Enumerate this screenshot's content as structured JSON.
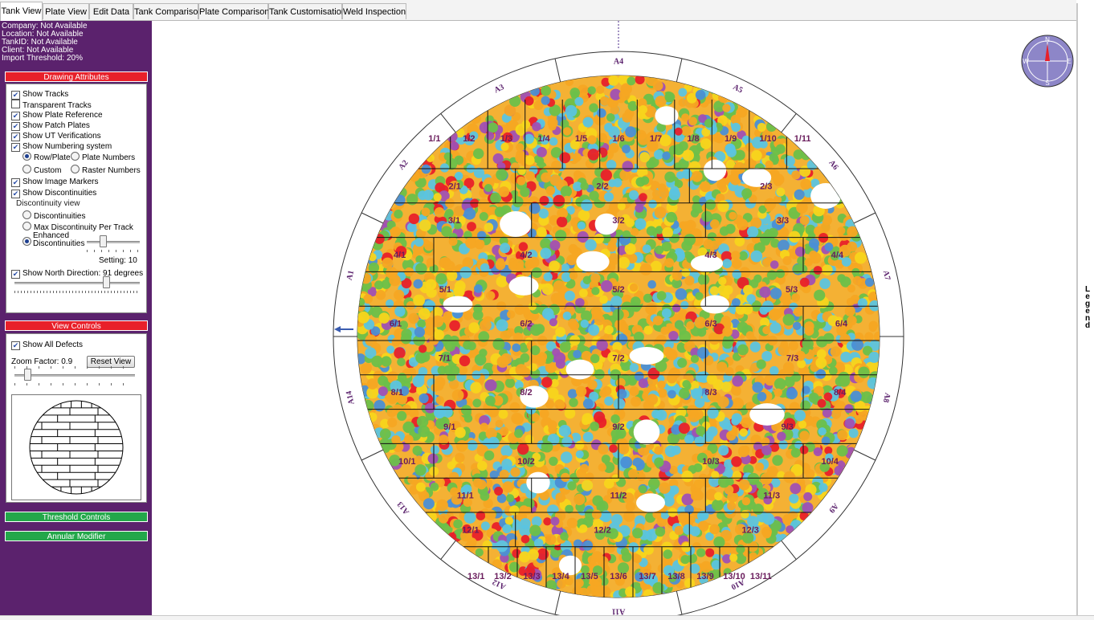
{
  "tabs": [
    {
      "label": "Tank View",
      "active": true
    },
    {
      "label": "Plate View",
      "active": false
    },
    {
      "label": "Edit Data",
      "active": false
    },
    {
      "label": "Tank Comparison",
      "active": false
    },
    {
      "label": "Plate Comparison",
      "active": false
    },
    {
      "label": "Tank Customisation",
      "active": false
    },
    {
      "label": "Weld Inspection",
      "active": false
    }
  ],
  "info": {
    "company": "Company: Not Available",
    "location": "Location: Not Available",
    "tank_id": "TankID: Not Available",
    "client": "Client: Not Available",
    "threshold": "Import Threshold: 20%"
  },
  "drawing": {
    "header": "Drawing Attributes",
    "show_tracks": "Show Tracks",
    "transparent_tracks": "Transparent Tracks",
    "show_plate_reference": "Show Plate Reference",
    "show_patch_plates": "Show Patch Plates",
    "show_ut": "Show UT Verifications",
    "show_numbering": "Show Numbering system",
    "row_plate": "Row/Plate",
    "plate_numbers": "Plate Numbers",
    "custom": "Custom",
    "raster_numbers": "Raster Numbers",
    "show_image_markers": "Show Image Markers",
    "show_discontinuities": "Show Discontinuities",
    "disc_view": "Discontinuity view",
    "discontinuities": "Discontinuities",
    "max_disc": "Max Discontinuity Per Track",
    "enhanced_1": "Enhanced",
    "enhanced_2": "Discontinuities",
    "setting": "Setting: 10",
    "show_north": "Show North Direction: 91 degrees"
  },
  "view": {
    "header": "View Controls",
    "show_all": "Show All Defects",
    "zoom": "Zoom Factor: 0.9",
    "reset": "Reset View"
  },
  "threshold_header": "Threshold Controls",
  "annular_header": "Annular Modifier",
  "compass": {
    "n": "N",
    "s": "S",
    "e": "E",
    "w": "W"
  },
  "legend_label": "Legend",
  "annular_labels": [
    "A4",
    "A5",
    "A6",
    "A7",
    "A8",
    "A9",
    "A10",
    "A11",
    "A12",
    "A13",
    "A14",
    "A1",
    "A2",
    "A3"
  ],
  "plate_rows": [
    [
      "1/1",
      "1/2",
      "1/3",
      "1/4",
      "1/5",
      "1/6",
      "1/7",
      "1/8",
      "1/9",
      "1/10",
      "1/11"
    ],
    [
      "2/1",
      "2/2",
      "2/3"
    ],
    [
      "3/1",
      "3/2",
      "3/3"
    ],
    [
      "4/1",
      "4/2",
      "4/3",
      "4/4"
    ],
    [
      "5/1",
      "5/2",
      "5/3"
    ],
    [
      "6/1",
      "6/2",
      "6/3",
      "6/4"
    ],
    [
      "7/1",
      "7/2",
      "7/3"
    ],
    [
      "8/1",
      "8/2",
      "8/3",
      "8/4"
    ],
    [
      "9/1",
      "9/2",
      "9/3"
    ],
    [
      "10/1",
      "10/2",
      "10/3",
      "10/4"
    ],
    [
      "11/1",
      "11/2",
      "11/3"
    ],
    [
      "12/1",
      "12/2",
      "12/3"
    ],
    [
      "13/1",
      "13/2",
      "13/3",
      "13/4",
      "13/5",
      "13/6",
      "13/7",
      "13/8",
      "13/9",
      "13/10",
      "13/11"
    ]
  ],
  "colors": {
    "sidebar": "#5b226d",
    "red_header": "#e8202a",
    "green_header": "#23a74a",
    "defect_palette": [
      "#f5a623",
      "#f7d51c",
      "#6cc04a",
      "#5bc4e0",
      "#4a8fd6",
      "#a050b4",
      "#e8202a"
    ]
  }
}
